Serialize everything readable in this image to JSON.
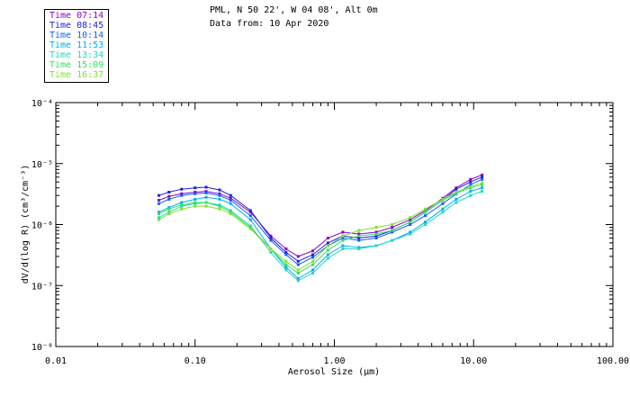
{
  "header": {
    "line1": "PML, N 50 22', W 04 08', Alt 0m",
    "line2": "Data from: 10 Apr 2020"
  },
  "chart_data": {
    "type": "line",
    "xscale": "log",
    "yscale": "log",
    "xlim": [
      0.01,
      100.0
    ],
    "ylim": [
      1e-08,
      0.0001
    ],
    "xlabel": "Aerosol Size (μm)",
    "ylabel": "dV/d(log R) (cm³/cm⁻³)",
    "xticks": [
      {
        "value": 0.01,
        "label": "0.01"
      },
      {
        "value": 0.1,
        "label": "0.10"
      },
      {
        "value": 1.0,
        "label": "1.00"
      },
      {
        "value": 10.0,
        "label": "10.00"
      },
      {
        "value": 100.0,
        "label": "100.00"
      }
    ],
    "yticks": [
      {
        "value": 1e-08,
        "label": "10⁻⁸"
      },
      {
        "value": 1e-07,
        "label": "10⁻⁷"
      },
      {
        "value": 1e-06,
        "label": "10⁻⁶"
      },
      {
        "value": 1e-05,
        "label": "10⁻⁵"
      },
      {
        "value": 0.0001,
        "label": "10⁻⁴"
      }
    ],
    "x": [
      0.055,
      0.065,
      0.08,
      0.1,
      0.12,
      0.15,
      0.18,
      0.25,
      0.35,
      0.45,
      0.55,
      0.7,
      0.9,
      1.15,
      1.5,
      2.0,
      2.6,
      3.5,
      4.5,
      6.0,
      7.5,
      9.5,
      11.5
    ],
    "legend_position": "top-left-outside",
    "series": [
      {
        "name": "Time 07:14",
        "color": "#8b00c8",
        "values": [
          2.5e-06,
          2.9e-06,
          3.2e-06,
          3.4e-06,
          3.5e-06,
          3.2e-06,
          2.7e-06,
          1.6e-06,
          6.5e-07,
          4e-07,
          3e-07,
          3.7e-07,
          6e-07,
          7.5e-07,
          7e-07,
          7.5e-07,
          9e-07,
          1.2e-06,
          1.7e-06,
          2.7e-06,
          4e-06,
          5.5e-06,
          6.5e-06
        ]
      },
      {
        "name": "Time 08:45",
        "color": "#2020e0",
        "values": [
          3e-06,
          3.4e-06,
          3.8e-06,
          4e-06,
          4.1e-06,
          3.7e-06,
          3e-06,
          1.7e-06,
          6e-07,
          3.5e-07,
          2.5e-07,
          3.2e-07,
          5e-07,
          6.5e-07,
          6e-07,
          6.5e-07,
          8e-07,
          1.1e-06,
          1.6e-06,
          2.5e-06,
          3.8e-06,
          5e-06,
          6e-06
        ]
      },
      {
        "name": "Time 10:14",
        "color": "#1060ff",
        "values": [
          2.2e-06,
          2.6e-06,
          3e-06,
          3.2e-06,
          3.3e-06,
          3e-06,
          2.5e-06,
          1.4e-06,
          5.5e-07,
          3.2e-07,
          2.2e-07,
          2.9e-07,
          4.5e-07,
          6e-07,
          5.5e-07,
          6e-07,
          7.5e-07,
          1e-06,
          1.4e-06,
          2.2e-06,
          3.2e-06,
          4.5e-06,
          5.5e-06
        ]
      },
      {
        "name": "Time 11:53",
        "color": "#00b0e8",
        "values": [
          1.6e-06,
          1.9e-06,
          2.3e-06,
          2.6e-06,
          2.8e-06,
          2.6e-06,
          2.2e-06,
          1.2e-06,
          4e-07,
          2e-07,
          1.3e-07,
          1.8e-07,
          3.2e-07,
          4.5e-07,
          4.2e-07,
          4.5e-07,
          5.5e-07,
          7.5e-07,
          1.1e-06,
          1.8e-06,
          2.6e-06,
          3.5e-06,
          4e-06
        ]
      },
      {
        "name": "Time 13:34",
        "color": "#20d8c0",
        "values": [
          1.3e-06,
          1.6e-06,
          2e-06,
          2.2e-06,
          2.3e-06,
          2.1e-06,
          1.7e-06,
          9.5e-07,
          3.5e-07,
          1.8e-07,
          1.2e-07,
          1.6e-07,
          2.8e-07,
          4e-07,
          4e-07,
          4.5e-07,
          5.5e-07,
          7e-07,
          1e-06,
          1.6e-06,
          2.3e-06,
          3e-06,
          3.5e-06
        ]
      },
      {
        "name": "Time 15:09",
        "color": "#30e060",
        "values": [
          1.5e-06,
          1.8e-06,
          2.1e-06,
          2.3e-06,
          2.3e-06,
          2e-06,
          1.6e-06,
          9e-07,
          4e-07,
          2.2e-07,
          1.6e-07,
          2.2e-07,
          3.8e-07,
          5.5e-07,
          6.5e-07,
          7e-07,
          8e-07,
          1.1e-06,
          1.6e-06,
          2.5e-06,
          3.3e-06,
          4e-06,
          4.5e-06
        ]
      },
      {
        "name": "Time 16:37",
        "color": "#80e030",
        "values": [
          1.2e-06,
          1.5e-06,
          1.8e-06,
          2e-06,
          2e-06,
          1.8e-06,
          1.5e-06,
          8.5e-07,
          4e-07,
          2.5e-07,
          1.8e-07,
          2.5e-07,
          4.5e-07,
          6.5e-07,
          8e-07,
          9e-07,
          1e-06,
          1.3e-06,
          1.8e-06,
          2.6e-06,
          3.4e-06,
          4.2e-06,
          4.8e-06
        ]
      }
    ]
  }
}
